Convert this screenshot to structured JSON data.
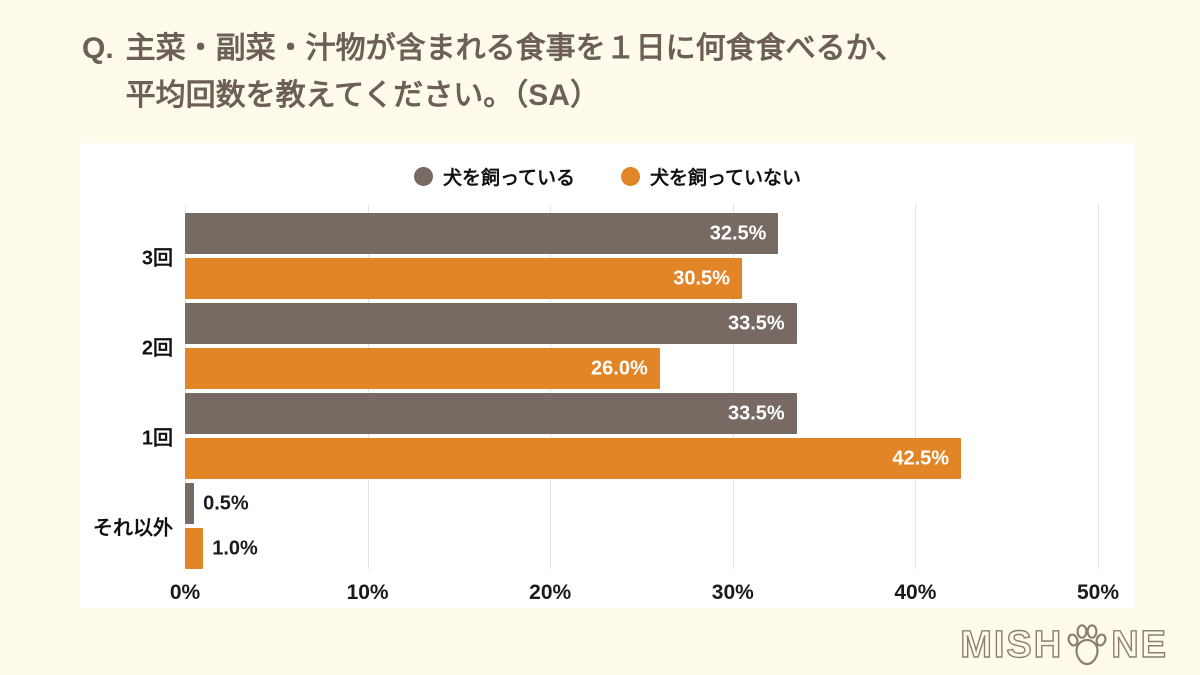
{
  "page": {
    "background": "#FFFBEB",
    "panel_background": "#FFFFFF"
  },
  "title": {
    "prefix": "Q.",
    "line1": "主菜・副菜・汁物が含まれる食事を１日に何食食べるか、",
    "line2": "平均回数を教えてください。（SA）"
  },
  "legend": {
    "items": [
      {
        "label": "犬を飼っている",
        "color": "#766A62"
      },
      {
        "label": "犬を飼っていない",
        "color": "#E28527"
      }
    ]
  },
  "chart_data": {
    "type": "bar",
    "orientation": "horizontal",
    "categories": [
      "3回",
      "2回",
      "1回",
      "それ以外"
    ],
    "series": [
      {
        "name": "犬を飼っている",
        "color": "#766A62",
        "values": [
          32.5,
          33.5,
          33.5,
          0.5
        ]
      },
      {
        "name": "犬を飼っていない",
        "color": "#E28527",
        "values": [
          30.5,
          26.0,
          42.5,
          1.0
        ]
      }
    ],
    "value_labels": [
      [
        "32.5%",
        "30.5%"
      ],
      [
        "33.5%",
        "26.0%"
      ],
      [
        "33.5%",
        "42.5%"
      ],
      [
        "0.5%",
        "1.0%"
      ]
    ],
    "xlim": [
      0,
      50
    ],
    "x_ticks": [
      "0%",
      "10%",
      "20%",
      "30%",
      "40%",
      "50%"
    ],
    "grid": true,
    "gridline_color": "#E3E3E3",
    "legend_position": "top",
    "value_label_color_inside": "#FFFFFF",
    "value_label_color_outside": "#1A1A1A"
  },
  "logo": {
    "name": "MISHONE",
    "text_left": "MISH",
    "text_right": "NE",
    "icon": "paw-print-icon",
    "color": "#8C7E73"
  }
}
